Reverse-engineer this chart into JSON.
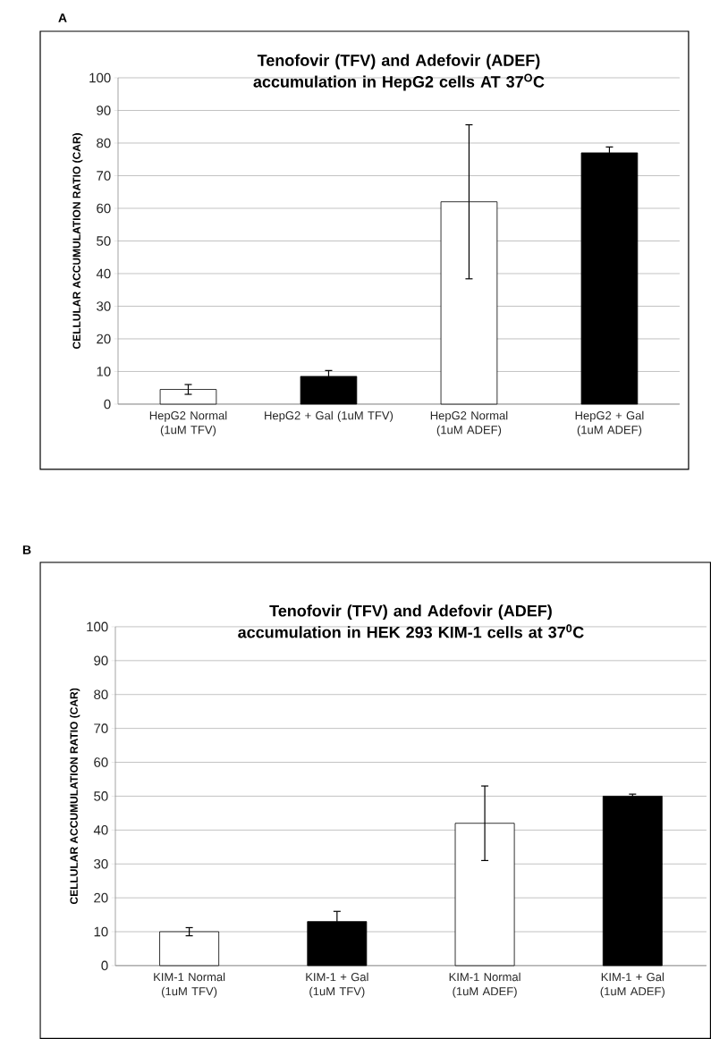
{
  "chart_data": [
    {
      "type": "bar",
      "title": "Tenofovir (TFV) and Adefovir (ADEF) accumulation in HepG2 cells AT 37$^{O}$C",
      "ylabel": "CELLULAR ACCUMULATION RATIO (CAR)",
      "categories": [
        "HepG2 Normal (1uM TFV)",
        "HepG2 + Gal (1uM TFV)",
        "HepG2 Normal (1uM ADEF)",
        "HepG2 + Gal (1uM ADEF)"
      ],
      "values": [
        4.5,
        8.5,
        62,
        77
      ],
      "errors": [
        1.5,
        1.8,
        23.6,
        1.8
      ],
      "colors": [
        "#ffffff",
        "#000000",
        "#ffffff",
        "#000000"
      ],
      "ylim": [
        0,
        100
      ],
      "yticks": [
        0,
        10,
        20,
        30,
        40,
        50,
        60,
        70,
        80,
        90,
        100
      ],
      "grid": "y",
      "annotations": [
        "A"
      ]
    },
    {
      "type": "bar",
      "title": "Tenofovir (TFV) and Adefovir (ADEF) accumulation in HEK 293 KIM-1 cells at 37$^{0}$C",
      "ylabel": "CELLULAR ACCUMULATION RATIO (CAR)",
      "categories": [
        "KIM-1 Normal (1uM TFV)",
        "KIM-1 + Gal (1uM TFV)",
        "KIM-1 Normal (1uM ADEF)",
        "KIM-1 + Gal (1uM ADEF)"
      ],
      "values": [
        10,
        13,
        42,
        50
      ],
      "errors": [
        1.2,
        3,
        11,
        0.6
      ],
      "colors": [
        "#ffffff",
        "#000000",
        "#ffffff",
        "#000000"
      ],
      "ylim": [
        0,
        100
      ],
      "yticks": [
        0,
        10,
        20,
        30,
        40,
        50,
        60,
        70,
        80,
        90,
        100
      ],
      "grid": "y",
      "annotations": [
        "B"
      ]
    }
  ]
}
